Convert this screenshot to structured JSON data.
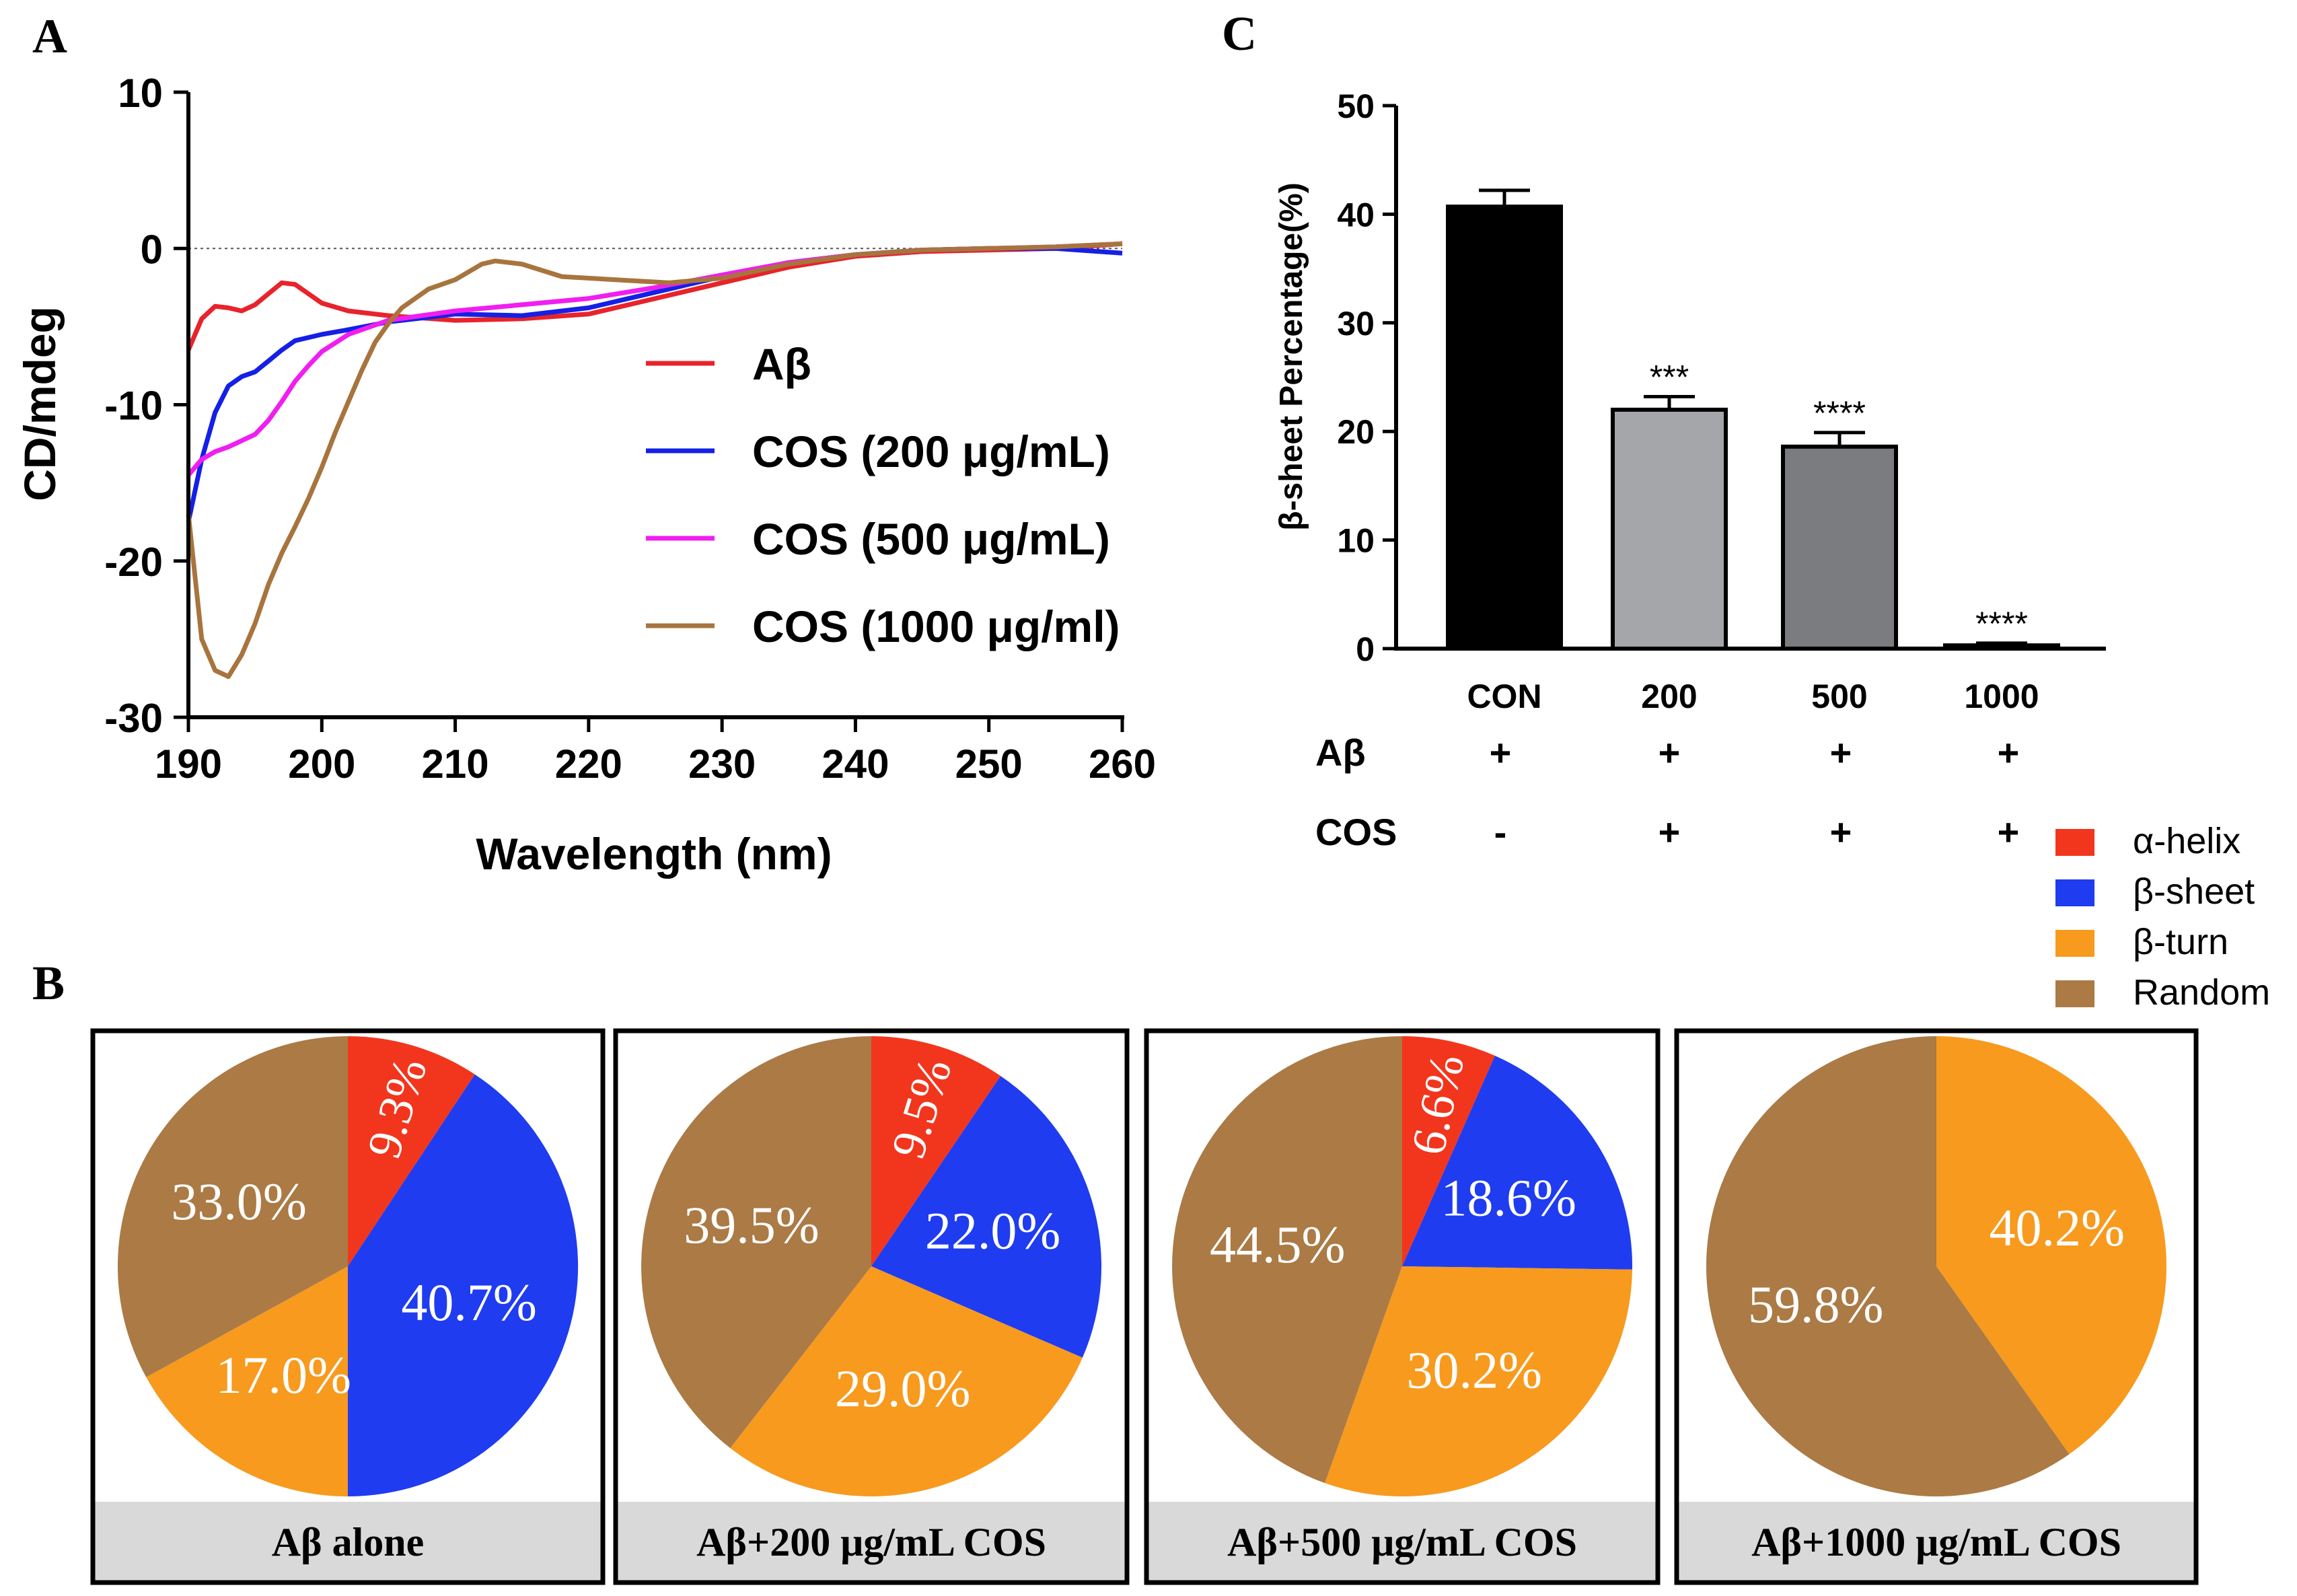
{
  "panel_labels": {
    "a": "A",
    "b": "B",
    "c": "C"
  },
  "colors": {
    "ab": "#e8232b",
    "cos200": "#1420e6",
    "cos500": "#f01ef0",
    "cos1000": "#a8743e",
    "alpha": "#f2361d",
    "beta_sheet": "#1f3cf0",
    "beta_turn": "#f79a1e",
    "random": "#ab7a45",
    "bar_con": "#000000",
    "bar_200": "#a5a6aa",
    "bar_500": "#7b7c80",
    "caption_bg": "#d9d9d9"
  },
  "chart_data": [
    {
      "id": "A",
      "type": "line",
      "xlabel": "Wavelength (nm)",
      "ylabel": "CD/mdeg",
      "xlim": [
        190,
        260
      ],
      "ylim": [
        -30,
        10
      ],
      "xticks": [
        "190",
        "200",
        "210",
        "220",
        "230",
        "240",
        "250",
        "260"
      ],
      "yticks": [
        "10",
        "0",
        "-10",
        "-20",
        "-30"
      ],
      "zero_line": true,
      "legend_position": "center-right",
      "series": [
        {
          "name": "Aβ",
          "color_key": "ab",
          "points": [
            [
              190,
              -6.5
            ],
            [
              191,
              -4.5
            ],
            [
              192,
              -3.7
            ],
            [
              193,
              -3.8
            ],
            [
              194,
              -4.0
            ],
            [
              195,
              -3.6
            ],
            [
              196,
              -2.9
            ],
            [
              197,
              -2.2
            ],
            [
              198,
              -2.3
            ],
            [
              199,
              -2.9
            ],
            [
              200,
              -3.5
            ],
            [
              202,
              -4.0
            ],
            [
              205,
              -4.3
            ],
            [
              210,
              -4.6
            ],
            [
              215,
              -4.5
            ],
            [
              220,
              -4.2
            ],
            [
              225,
              -3.2
            ],
            [
              230,
              -2.2
            ],
            [
              235,
              -1.2
            ],
            [
              240,
              -0.5
            ],
            [
              245,
              -0.2
            ],
            [
              250,
              -0.1
            ],
            [
              255,
              0.0
            ],
            [
              260,
              0.3
            ]
          ]
        },
        {
          "name": "COS (200 μg/mL)",
          "color_key": "cos200",
          "points": [
            [
              190,
              -17.5
            ],
            [
              191,
              -13.5
            ],
            [
              192,
              -10.5
            ],
            [
              193,
              -8.8
            ],
            [
              194,
              -8.2
            ],
            [
              195,
              -7.9
            ],
            [
              196,
              -7.2
            ],
            [
              197,
              -6.5
            ],
            [
              198,
              -5.9
            ],
            [
              200,
              -5.5
            ],
            [
              202,
              -5.2
            ],
            [
              205,
              -4.7
            ],
            [
              210,
              -4.2
            ],
            [
              215,
              -4.3
            ],
            [
              220,
              -3.8
            ],
            [
              225,
              -2.8
            ],
            [
              230,
              -1.8
            ],
            [
              235,
              -0.9
            ],
            [
              240,
              -0.4
            ],
            [
              245,
              -0.1
            ],
            [
              250,
              0.0
            ],
            [
              255,
              0.0
            ],
            [
              260,
              -0.3
            ]
          ]
        },
        {
          "name": "COS (500 μg/mL)",
          "color_key": "cos500",
          "points": [
            [
              190,
              -14.5
            ],
            [
              191,
              -13.5
            ],
            [
              192,
              -13.0
            ],
            [
              193,
              -12.7
            ],
            [
              194,
              -12.3
            ],
            [
              195,
              -11.9
            ],
            [
              196,
              -11.0
            ],
            [
              197,
              -9.8
            ],
            [
              198,
              -8.5
            ],
            [
              199,
              -7.5
            ],
            [
              200,
              -6.6
            ],
            [
              202,
              -5.5
            ],
            [
              205,
              -4.6
            ],
            [
              210,
              -4.0
            ],
            [
              215,
              -3.6
            ],
            [
              220,
              -3.2
            ],
            [
              225,
              -2.5
            ],
            [
              230,
              -1.7
            ],
            [
              235,
              -0.9
            ],
            [
              240,
              -0.4
            ],
            [
              245,
              -0.1
            ],
            [
              250,
              0.0
            ],
            [
              255,
              0.1
            ],
            [
              260,
              0.3
            ]
          ]
        },
        {
          "name": "COS (1000 μg/ml)",
          "color_key": "cos1000",
          "points": [
            [
              190,
              -17.0
            ],
            [
              191,
              -25.0
            ],
            [
              192,
              -27.0
            ],
            [
              193,
              -27.4
            ],
            [
              194,
              -26.0
            ],
            [
              195,
              -24.0
            ],
            [
              196,
              -21.5
            ],
            [
              197,
              -19.5
            ],
            [
              198,
              -17.8
            ],
            [
              199,
              -16.0
            ],
            [
              200,
              -14.0
            ],
            [
              201,
              -11.8
            ],
            [
              202,
              -9.8
            ],
            [
              203,
              -7.8
            ],
            [
              204,
              -6.0
            ],
            [
              205,
              -4.8
            ],
            [
              206,
              -3.8
            ],
            [
              208,
              -2.6
            ],
            [
              210,
              -2.0
            ],
            [
              212,
              -1.0
            ],
            [
              213,
              -0.8
            ],
            [
              215,
              -1.0
            ],
            [
              218,
              -1.8
            ],
            [
              222,
              -2.0
            ],
            [
              226,
              -2.2
            ],
            [
              230,
              -1.9
            ],
            [
              235,
              -1.0
            ],
            [
              240,
              -0.4
            ],
            [
              245,
              -0.1
            ],
            [
              250,
              0.0
            ],
            [
              255,
              0.1
            ],
            [
              260,
              0.3
            ]
          ]
        }
      ]
    },
    {
      "id": "B",
      "type": "pie",
      "legend": [
        {
          "label": "α-helix",
          "color_key": "alpha"
        },
        {
          "label": "β-sheet",
          "color_key": "beta_sheet"
        },
        {
          "label": "β-turn",
          "color_key": "beta_turn"
        },
        {
          "label": "Random",
          "color_key": "random"
        }
      ],
      "pies": [
        {
          "caption": "Aβ alone",
          "slices": [
            {
              "name": "α-helix",
              "value": 9.3,
              "label": "9.3%",
              "color_key": "alpha"
            },
            {
              "name": "β-sheet",
              "value": 40.7,
              "label": "40.7%",
              "color_key": "beta_sheet"
            },
            {
              "name": "β-turn",
              "value": 17.0,
              "label": "17.0%",
              "color_key": "beta_turn"
            },
            {
              "name": "Random",
              "value": 33.0,
              "label": "33.0%",
              "color_key": "random"
            }
          ]
        },
        {
          "caption": "Aβ+200 μg/mL COS",
          "slices": [
            {
              "name": "α-helix",
              "value": 9.5,
              "label": "9.5%",
              "color_key": "alpha"
            },
            {
              "name": "β-sheet",
              "value": 22.0,
              "label": "22.0%",
              "color_key": "beta_sheet"
            },
            {
              "name": "β-turn",
              "value": 29.0,
              "label": "29.0%",
              "color_key": "beta_turn"
            },
            {
              "name": "Random",
              "value": 39.5,
              "label": "39.5%",
              "color_key": "random"
            }
          ]
        },
        {
          "caption": "Aβ+500 μg/mL COS",
          "slices": [
            {
              "name": "α-helix",
              "value": 6.6,
              "label": "6.6%",
              "color_key": "alpha"
            },
            {
              "name": "β-sheet",
              "value": 18.6,
              "label": "18.6%",
              "color_key": "beta_sheet"
            },
            {
              "name": "β-turn",
              "value": 30.2,
              "label": "30.2%",
              "color_key": "beta_turn"
            },
            {
              "name": "Random",
              "value": 44.5,
              "label": "44.5%",
              "color_key": "random"
            }
          ]
        },
        {
          "caption": "Aβ+1000 μg/mL COS",
          "slices": [
            {
              "name": "β-turn",
              "value": 40.2,
              "label": "40.2%",
              "color_key": "beta_turn"
            },
            {
              "name": "Random",
              "value": 59.8,
              "label": "59.8%",
              "color_key": "random"
            }
          ]
        }
      ]
    },
    {
      "id": "C",
      "type": "bar",
      "ylabel": "β-sheet Percentage(%)",
      "ylim": [
        0,
        50
      ],
      "yticks": [
        "0",
        "10",
        "20",
        "30",
        "40",
        "50"
      ],
      "categories": [
        "CON",
        "200",
        "500",
        "1000"
      ],
      "values": [
        40.7,
        22.0,
        18.6,
        0.3
      ],
      "errors": [
        1.5,
        1.2,
        1.3,
        0.2
      ],
      "significance": [
        "",
        "***",
        "****",
        "****"
      ],
      "bar_color_keys": [
        "bar_con",
        "bar_200",
        "bar_500",
        "bar_con"
      ],
      "condition_rows": [
        {
          "label": "Aβ",
          "values": [
            "+",
            "+",
            "+",
            "+"
          ]
        },
        {
          "label": "COS",
          "values": [
            "-",
            "+",
            "+",
            "+"
          ]
        }
      ]
    }
  ]
}
